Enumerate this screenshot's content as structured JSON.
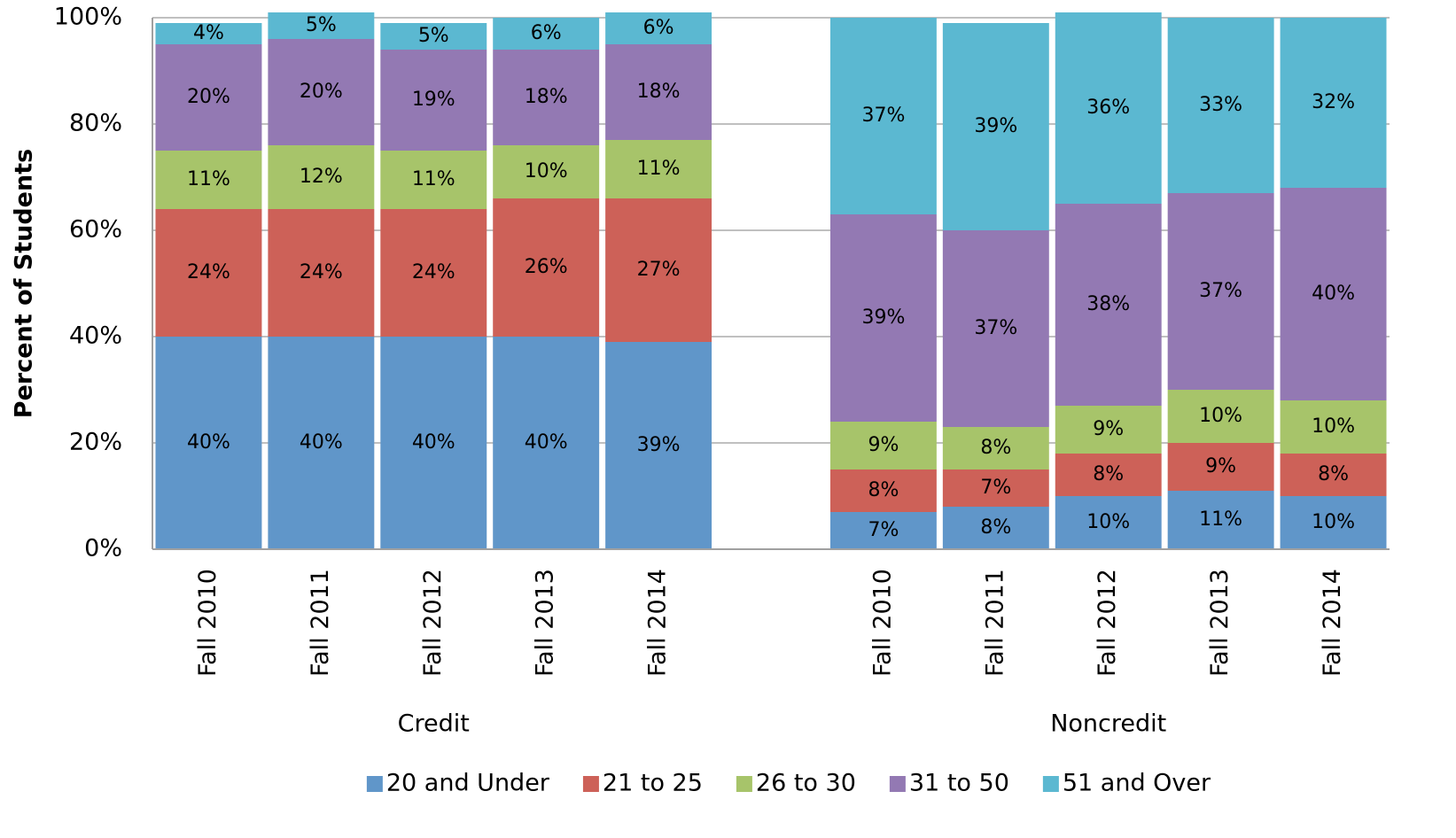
{
  "chart_data": {
    "type": "stacked_bar",
    "y_label": "Percent of Students",
    "categories": [
      "Fall 2010",
      "Fall 2011",
      "Fall 2012",
      "Fall 2013",
      "Fall 2014",
      null,
      "Fall 2010",
      "Fall 2011",
      "Fall 2012",
      "Fall 2013",
      "Fall 2014"
    ],
    "group_labels": [
      "Credit",
      "Noncredit"
    ],
    "series": [
      {
        "name": "20 and Under",
        "color": "#6096c9",
        "values": [
          40,
          40,
          40,
          40,
          39,
          null,
          7,
          8,
          10,
          11,
          10
        ],
        "value_labels": [
          "40%",
          "40%",
          "40%",
          "40%",
          "39%",
          null,
          "7%",
          "8%",
          "10%",
          "11%",
          "10%"
        ]
      },
      {
        "name": "21 to 25",
        "color": "#cd6158",
        "values": [
          24,
          24,
          24,
          26,
          27,
          null,
          8,
          7,
          8,
          9,
          8
        ],
        "value_labels": [
          "24%",
          "24%",
          "24%",
          "26%",
          "27%",
          null,
          "8%",
          "7%",
          "8%",
          "9%",
          "8%"
        ]
      },
      {
        "name": "26 to 30",
        "color": "#a7c46a",
        "values": [
          11,
          12,
          11,
          10,
          11,
          null,
          9,
          8,
          9,
          10,
          10
        ],
        "value_labels": [
          "11%",
          "12%",
          "11%",
          "10%",
          "11%",
          null,
          "9%",
          "8%",
          "9%",
          "10%",
          "10%"
        ]
      },
      {
        "name": "31 to 50",
        "color": "#9379b3",
        "values": [
          20,
          20,
          19,
          18,
          18,
          null,
          39,
          37,
          38,
          37,
          40
        ],
        "value_labels": [
          "20%",
          "20%",
          "19%",
          "18%",
          "18%",
          null,
          "39%",
          "37%",
          "38%",
          "37%",
          "40%"
        ]
      },
      {
        "name": "51 and Over",
        "color": "#5bb8d1",
        "values": [
          4,
          5,
          5,
          6,
          6,
          null,
          37,
          39,
          36,
          33,
          32
        ],
        "value_labels": [
          "4%",
          "5%",
          "5%",
          "6%",
          "6%",
          null,
          "37%",
          "39%",
          "36%",
          "33%",
          "32%"
        ]
      }
    ],
    "ylim": [
      0,
      100
    ],
    "yticks": [
      {
        "value": 0,
        "label": "0%"
      },
      {
        "value": 20,
        "label": "20%"
      },
      {
        "value": 40,
        "label": "40%"
      },
      {
        "value": 60,
        "label": "60%"
      },
      {
        "value": 80,
        "label": "80%"
      },
      {
        "value": 100,
        "label": "100%"
      }
    ],
    "grid": true,
    "legend": "bottom"
  }
}
